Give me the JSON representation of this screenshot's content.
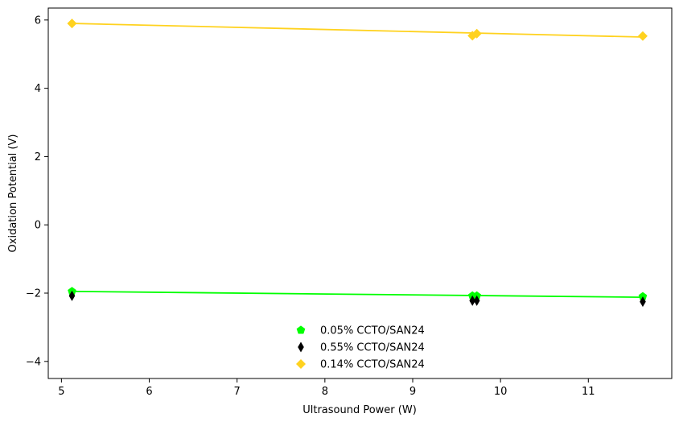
{
  "chart_data": {
    "type": "scatter",
    "title": "",
    "xlabel": "Ultrasound Power (W)",
    "ylabel": "Oxidation Potential (V)",
    "xlim": [
      4.85,
      11.95
    ],
    "ylim": [
      -4.5,
      6.35
    ],
    "xticks": [
      5,
      6,
      7,
      8,
      9,
      10,
      11
    ],
    "yticks": [
      -4,
      -2,
      0,
      2,
      4,
      6
    ],
    "grid": false,
    "legend_position": "lower-center",
    "series": [
      {
        "name": "0.05% CCTO/SAN24",
        "marker": "pentagon",
        "color": "#00ff00",
        "x": [
          5.12,
          9.68,
          9.73,
          11.62
        ],
        "y": [
          -1.95,
          -2.08,
          -2.08,
          -2.1
        ],
        "fit": {
          "x": [
            5.12,
            11.62
          ],
          "y": [
            -1.95,
            -2.12
          ]
        }
      },
      {
        "name": "0.55% CCTO/SAN24",
        "marker": "thin_diamond",
        "color": "#000000",
        "x": [
          5.12,
          9.68,
          9.73,
          11.62
        ],
        "y": [
          -2.08,
          -2.22,
          -2.22,
          -2.25
        ],
        "fit": null
      },
      {
        "name": "0.14% CCTO/SAN24",
        "marker": "diamond",
        "color": "#ffd21f",
        "x": [
          5.12,
          9.68,
          9.73,
          11.62
        ],
        "y": [
          5.9,
          5.54,
          5.6,
          5.53
        ],
        "fit": {
          "x": [
            5.12,
            11.62
          ],
          "y": [
            5.9,
            5.5
          ]
        }
      }
    ]
  }
}
